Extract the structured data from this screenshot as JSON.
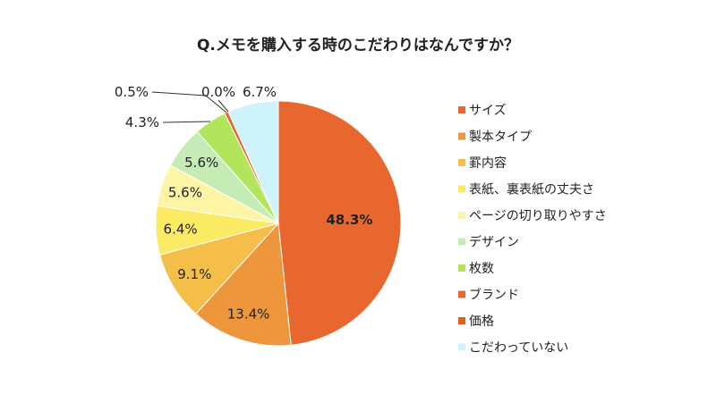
{
  "chart_data": {
    "type": "pie",
    "title": "Q.メモを購入する時のこだわりはなんですか？",
    "legend_position": "right",
    "slices": [
      {
        "label": "サイズ",
        "value": 48.3,
        "value_label": "48.3%",
        "color": "#E8672F"
      },
      {
        "label": "製本タイプ",
        "value": 13.4,
        "value_label": "13.4%",
        "color": "#EE963C"
      },
      {
        "label": "罫内容",
        "value": 9.1,
        "value_label": "9.1%",
        "color": "#F4BE48"
      },
      {
        "label": "表紙、裏表紙の丈夫さ",
        "value": 6.4,
        "value_label": "6.4%",
        "color": "#FBEA64"
      },
      {
        "label": "ページの切り取りやすさ",
        "value": 5.6,
        "value_label": "5.6%",
        "color": "#FDF4A6"
      },
      {
        "label": "デザイン",
        "value": 5.6,
        "value_label": "5.6%",
        "color": "#C5ECB4"
      },
      {
        "label": "枚数",
        "value": 4.3,
        "value_label": "4.3%",
        "color": "#B2E55C"
      },
      {
        "label": "ブランド",
        "value": 0.5,
        "value_label": "0.5%",
        "color": "#E8672F"
      },
      {
        "label": "価格",
        "value": 0.0,
        "value_label": "0.0%",
        "color": "#E0601F"
      },
      {
        "label": "こだわっていない",
        "value": 6.7,
        "value_label": "6.7%",
        "color": "#CFF3FA"
      }
    ]
  }
}
